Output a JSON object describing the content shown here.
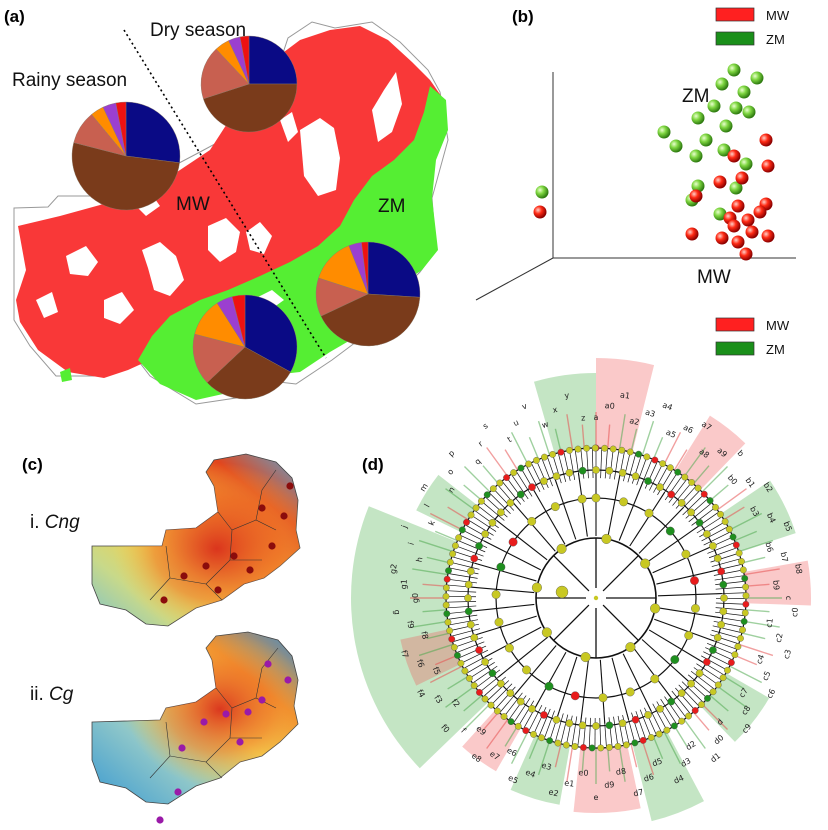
{
  "panels": {
    "a": {
      "letter": "(a)",
      "dry_label": "Dry season",
      "rainy_label": "Rainy season",
      "mw_label": "MW",
      "zm_label": "ZM"
    },
    "b": {
      "letter": "(b)",
      "legend": [
        {
          "label": "MW",
          "color": "#ff2020"
        },
        {
          "label": "ZM",
          "color": "#1a8f1a"
        }
      ],
      "zm_label": "ZM",
      "mw_label": "MW"
    },
    "c": {
      "letter": "(c)",
      "map1_prefix": "i. ",
      "map1_species": "Cng",
      "map2_prefix": "ii. ",
      "map2_species": "Cg"
    },
    "d": {
      "letter": "(d)",
      "legend": [
        {
          "label": "MW",
          "color": "#ff2020"
        },
        {
          "label": "ZM",
          "color": "#1a8f1a"
        }
      ]
    }
  },
  "colors": {
    "mw_region": "#f93838",
    "zm_region": "#55ee33",
    "pie_navy": "#0a0a85",
    "pie_brown": "#7a3b1b",
    "pie_orange": "#ff8c00",
    "pie_salmon": "#c86050",
    "pie_purple": "#9b3fd0",
    "pie_red": "#ee1111"
  },
  "pies": [
    {
      "id": "rainy-mw",
      "fractions": [
        0.27,
        0.52,
        0.1,
        0.04,
        0.04,
        0.03
      ]
    },
    {
      "id": "dry-mw",
      "fractions": [
        0.25,
        0.45,
        0.18,
        0.05,
        0.04,
        0.03
      ]
    },
    {
      "id": "dry-zm",
      "fractions": [
        0.26,
        0.42,
        0.12,
        0.14,
        0.04,
        0.02
      ]
    },
    {
      "id": "rainy-zm",
      "fractions": [
        0.33,
        0.3,
        0.16,
        0.12,
        0.05,
        0.04
      ]
    }
  ],
  "clade_labels": {
    "mw": [
      "a2",
      "a1",
      "a0",
      "y",
      "x",
      "v",
      "t",
      "s",
      "p",
      "o",
      "n",
      "m",
      "l",
      "k",
      "e",
      "d",
      "c",
      "b",
      "a",
      "h",
      "q",
      "f7",
      "e7",
      "e5",
      "e3",
      "e4",
      "d8",
      "d9",
      "c8",
      "d6",
      "c6",
      "b6",
      "b4",
      "b3",
      "b2",
      "d3",
      "e6"
    ],
    "zm": [
      "b1",
      "b0",
      "a5",
      "a4",
      "a3",
      "a9",
      "a8",
      "a7",
      "a6",
      "z",
      "w",
      "r",
      "u",
      "j",
      "i",
      "g",
      "f",
      "g1",
      "g2",
      "g0",
      "f9",
      "f8",
      "f6",
      "f5",
      "f4",
      "f3",
      "f2",
      "f0",
      "e9",
      "e8",
      "e2",
      "e1",
      "e0",
      "d7",
      "d5",
      "d4",
      "d2",
      "d1",
      "d0",
      "c9",
      "c7",
      "c5",
      "c4",
      "c3",
      "c2",
      "c1",
      "c0",
      "b9",
      "b8",
      "b7",
      "b5"
    ]
  }
}
